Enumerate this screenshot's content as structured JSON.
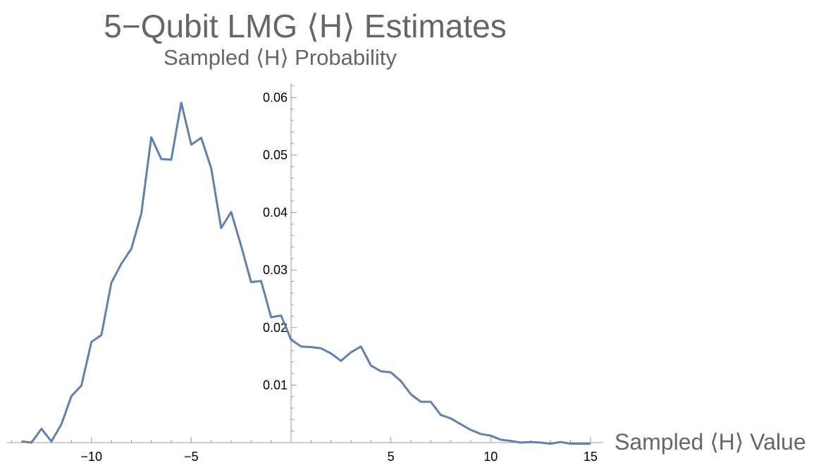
{
  "chart_data": {
    "type": "line",
    "title": "5−Qubit LMG ⟨H⟩ Estimates",
    "ylabel": "Sampled ⟨H⟩ Probability",
    "xlabel": "Sampled ⟨H⟩ Value",
    "xlim": [
      -14,
      15
    ],
    "ylim": [
      0,
      0.062
    ],
    "x_ticks": [
      -10,
      -5,
      5,
      10,
      15
    ],
    "x_tick_labels": [
      "−10",
      "−5",
      "5",
      "10",
      "15"
    ],
    "y_ticks": [
      0.01,
      0.02,
      0.03,
      0.04,
      0.05,
      0.06
    ],
    "y_tick_labels": [
      "0.01",
      "0.02",
      "0.03",
      "0.04",
      "0.05",
      "0.06"
    ],
    "grid": false,
    "line_color": "#5e81b5",
    "x": [
      -13.5,
      -13,
      -12.5,
      -12,
      -11.5,
      -11,
      -10.5,
      -10,
      -9.5,
      -9,
      -8.5,
      -8,
      -7.5,
      -7,
      -6.5,
      -6,
      -5.5,
      -5,
      -4.5,
      -4,
      -3.5,
      -3,
      -2.5,
      -2,
      -1.5,
      -1,
      -0.5,
      0,
      0.5,
      1,
      1.5,
      2,
      2.5,
      3,
      3.5,
      4,
      4.5,
      5,
      5.5,
      6,
      6.5,
      7,
      7.5,
      8,
      8.5,
      9,
      9.5,
      10,
      10.5,
      11,
      11.5,
      12,
      12.5,
      13,
      13.5,
      14,
      14.5,
      15
    ],
    "y": [
      0.0002,
      0,
      0.0024,
      0.0002,
      0.0032,
      0.0081,
      0.0099,
      0.0175,
      0.0187,
      0.0278,
      0.0311,
      0.0337,
      0.0398,
      0.0531,
      0.0493,
      0.0492,
      0.0591,
      0.0518,
      0.053,
      0.0477,
      0.0373,
      0.0401,
      0.0342,
      0.0279,
      0.0281,
      0.0218,
      0.0221,
      0.0179,
      0.0167,
      0.0166,
      0.0164,
      0.0155,
      0.0142,
      0.0157,
      0.0167,
      0.0134,
      0.0124,
      0.0122,
      0.0107,
      0.0084,
      0.0071,
      0.0071,
      0.0048,
      0.0042,
      0.0032,
      0.0022,
      0.0015,
      0.0012,
      0.0005,
      0.0003,
      0,
      0.0001,
      0,
      -0.0002,
      0.0001,
      -0.0002,
      -0.0002,
      -0.0002
    ]
  }
}
